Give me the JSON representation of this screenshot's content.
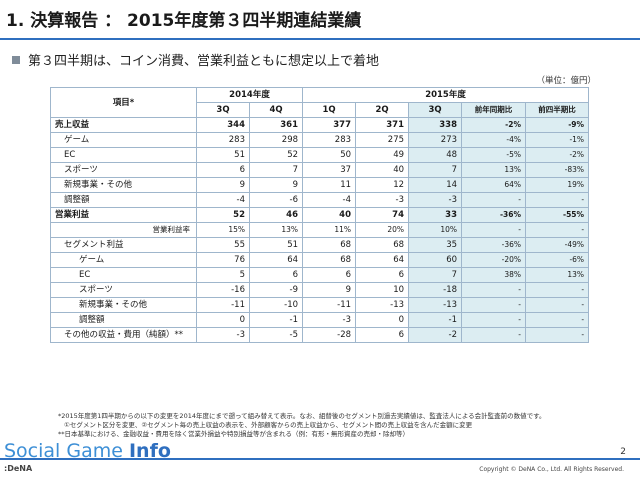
{
  "title": "1. 決算報告 ： 2015年度第３四半期連結業績",
  "subtitle": "第３四半期は、コイン消費、営業利益ともに想定以上で着地",
  "unit_note": "（単位：億円）",
  "table": {
    "item_header": "項目*",
    "year_2014": "2014年度",
    "year_2015": "2015年度",
    "quarters": [
      "3Q",
      "4Q",
      "1Q",
      "2Q",
      "3Q"
    ],
    "yoy_header": "前年同期比",
    "qoq_header": "前四半期比",
    "rows": [
      {
        "label": "売上収益",
        "values": [
          "344",
          "361",
          "377",
          "371",
          "338"
        ],
        "yoy": "-2%",
        "qoq": "-9%"
      },
      {
        "label": "ゲーム",
        "values": [
          "283",
          "298",
          "283",
          "275",
          "273"
        ],
        "yoy": "-4%",
        "qoq": "-1%"
      },
      {
        "label": "EC",
        "values": [
          "51",
          "52",
          "50",
          "49",
          "48"
        ],
        "yoy": "-5%",
        "qoq": "-2%"
      },
      {
        "label": "スポーツ",
        "values": [
          "6",
          "7",
          "37",
          "40",
          "7"
        ],
        "yoy": "13%",
        "qoq": "-83%"
      },
      {
        "label": "新規事業・その他",
        "values": [
          "9",
          "9",
          "11",
          "12",
          "14"
        ],
        "yoy": "64%",
        "qoq": "19%"
      },
      {
        "label": "調整額",
        "values": [
          "-4",
          "-6",
          "-4",
          "-3",
          "-3"
        ],
        "yoy": "-",
        "qoq": "-"
      },
      {
        "label": "営業利益",
        "values": [
          "52",
          "46",
          "40",
          "74",
          "33"
        ],
        "yoy": "-36%",
        "qoq": "-55%"
      },
      {
        "label": "営業利益率",
        "values": [
          "15%",
          "13%",
          "11%",
          "20%",
          "10%"
        ],
        "yoy": "-",
        "qoq": "-"
      },
      {
        "label": "セグメント利益",
        "values": [
          "55",
          "51",
          "68",
          "68",
          "35"
        ],
        "yoy": "-36%",
        "qoq": "-49%"
      },
      {
        "label": "ゲーム",
        "values": [
          "76",
          "64",
          "68",
          "64",
          "60"
        ],
        "yoy": "-20%",
        "qoq": "-6%"
      },
      {
        "label": "EC",
        "values": [
          "5",
          "6",
          "6",
          "6",
          "7"
        ],
        "yoy": "38%",
        "qoq": "13%"
      },
      {
        "label": "スポーツ",
        "values": [
          "-16",
          "-9",
          "9",
          "10",
          "-18"
        ],
        "yoy": "-",
        "qoq": "-"
      },
      {
        "label": "新規事業・その他",
        "values": [
          "-11",
          "-10",
          "-11",
          "-13",
          "-13"
        ],
        "yoy": "-",
        "qoq": "-"
      },
      {
        "label": "調整額",
        "values": [
          "0",
          "-1",
          "-3",
          "0",
          "-1"
        ],
        "yoy": "-",
        "qoq": "-"
      },
      {
        "label": "その他の収益・費用（純額）**",
        "values": [
          "-3",
          "-5",
          "-28",
          "6",
          "-2"
        ],
        "yoy": "-",
        "qoq": "-"
      }
    ]
  },
  "footnotes": [
    "*2015年度第1四半期からの以下の変更を2014年度にまで遡って組み替えて表示。なお、組替後のセグメント別過去実績値は、監査法人による会計監査前の数値です。",
    "①セグメント区分を変更、②セグメント毎の売上収益の表示を、外部顧客からの売上収益から、セグメント間の売上収益を含んだ金額に変更",
    "**日本基準における、金融収益・費用を除く営業外損益や特別損益等が含まれる（例：有形・無形資産の売却・除却等）"
  ],
  "page_number": "2",
  "logo": {
    "prefix": "Social Game",
    "suffix": "Info"
  },
  "dena_label": ":DeNA",
  "copyright": "Copyright © DeNA Co., Ltd. All Rights Reserved."
}
